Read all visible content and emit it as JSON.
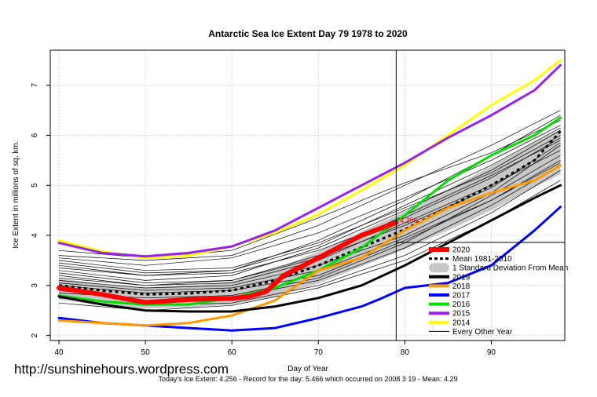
{
  "chart_data": {
    "type": "line",
    "title": "Antarctic Sea Ice Extent Day 79 1978 to 2020",
    "xlabel": "Day of Year",
    "ylabel": "Ice Extent in millions of sq. km.",
    "xlim": [
      39,
      98.5
    ],
    "ylim": [
      1.9,
      7.7
    ],
    "x_ticks": [
      40,
      50,
      60,
      70,
      80,
      90
    ],
    "y_ticks": [
      2,
      3,
      4,
      5,
      6,
      7
    ],
    "grid": true,
    "legend_position": "bottom-right",
    "current_day": 79,
    "current_value": 4.256,
    "current_value_label": "4.256",
    "footer": "Today's Ice Extent: 4.256  - Record for the day: 5.466 which occurred on 2008 3 19  - Mean: 4.29",
    "watermark": "http://sunshinehours.wordpress.com",
    "legend": [
      {
        "label": "2020",
        "color": "#ff0000",
        "style": "thick"
      },
      {
        "label": "Mean 1981-2010",
        "color": "#000000",
        "style": "dashed"
      },
      {
        "label": "1 Standard Deviation From Mean",
        "color": "#c8c8c8",
        "style": "band"
      },
      {
        "label": "2019",
        "color": "#000000",
        "style": "line"
      },
      {
        "label": "2018",
        "color": "#ff9900",
        "style": "line"
      },
      {
        "label": "2017",
        "color": "#0000ff",
        "style": "line"
      },
      {
        "label": "2016",
        "color": "#00dd00",
        "style": "line"
      },
      {
        "label": "2015",
        "color": "#9922ee",
        "style": "line"
      },
      {
        "label": "2014",
        "color": "#ffff00",
        "style": "line"
      },
      {
        "label": "Every Other Year",
        "color": "#000000",
        "style": "thin"
      }
    ],
    "band": {
      "x": [
        40,
        45,
        50,
        55,
        60,
        65,
        70,
        75,
        80,
        85,
        90,
        95,
        98
      ],
      "upper": [
        3.14,
        3.02,
        2.96,
        3.0,
        3.08,
        3.32,
        3.68,
        4.08,
        4.48,
        4.92,
        5.38,
        5.86,
        6.12
      ],
      "lower": [
        2.72,
        2.6,
        2.54,
        2.56,
        2.62,
        2.78,
        3.04,
        3.38,
        3.72,
        4.1,
        4.5,
        4.96,
        5.22
      ]
    },
    "mean": {
      "x": [
        40,
        45,
        50,
        55,
        60,
        65,
        70,
        75,
        80,
        85,
        90,
        95,
        98
      ],
      "y": [
        3.0,
        2.9,
        2.82,
        2.84,
        2.9,
        3.1,
        3.4,
        3.76,
        4.12,
        4.56,
        5.0,
        5.5,
        6.08
      ]
    },
    "series": [
      {
        "name": "2014",
        "color": "#ffff00",
        "width": 3,
        "x": [
          40,
          45,
          50,
          55,
          60,
          65,
          70,
          75,
          80,
          85,
          90,
          95,
          98
        ],
        "y": [
          3.9,
          3.68,
          3.55,
          3.6,
          3.78,
          4.05,
          4.42,
          4.9,
          5.4,
          6.0,
          6.6,
          7.1,
          7.5
        ]
      },
      {
        "name": "2015",
        "color": "#9922ee",
        "width": 3,
        "x": [
          40,
          45,
          50,
          55,
          60,
          65,
          70,
          75,
          80,
          85,
          90,
          95,
          98
        ],
        "y": [
          3.85,
          3.65,
          3.58,
          3.65,
          3.78,
          4.1,
          4.55,
          5.0,
          5.45,
          5.95,
          6.4,
          6.9,
          7.4
        ]
      },
      {
        "name": "2016",
        "color": "#00dd00",
        "width": 3,
        "x": [
          40,
          45,
          50,
          55,
          60,
          65,
          70,
          75,
          80,
          85,
          90,
          95,
          98
        ],
        "y": [
          2.8,
          2.68,
          2.62,
          2.62,
          2.75,
          2.95,
          3.3,
          3.75,
          4.4,
          5.1,
          5.6,
          6.0,
          6.35
        ]
      },
      {
        "name": "2017",
        "color": "#0000ff",
        "width": 3,
        "x": [
          40,
          45,
          50,
          55,
          60,
          65,
          70,
          75,
          77,
          80,
          85,
          90,
          95,
          98
        ],
        "y": [
          2.35,
          2.25,
          2.2,
          2.15,
          2.1,
          2.15,
          2.35,
          2.58,
          2.72,
          2.95,
          3.05,
          3.4,
          4.1,
          4.57
        ]
      },
      {
        "name": "2018",
        "color": "#ff9900",
        "width": 3,
        "x": [
          40,
          45,
          50,
          55,
          60,
          65,
          70,
          75,
          80,
          85,
          90,
          95,
          98
        ],
        "y": [
          2.3,
          2.25,
          2.2,
          2.25,
          2.4,
          2.7,
          3.3,
          3.55,
          4.1,
          4.55,
          4.85,
          5.1,
          5.4
        ]
      },
      {
        "name": "2019",
        "color": "#000000",
        "width": 3,
        "x": [
          40,
          45,
          50,
          55,
          60,
          65,
          70,
          75,
          80,
          85,
          90,
          95,
          98
        ],
        "y": [
          2.78,
          2.62,
          2.5,
          2.48,
          2.48,
          2.58,
          2.75,
          3.0,
          3.4,
          3.85,
          4.3,
          4.75,
          5.0
        ]
      },
      {
        "name": "2020",
        "color": "#ff0000",
        "width": 6,
        "x": [
          40,
          45,
          50,
          55,
          60,
          62,
          64,
          66,
          70,
          75,
          79
        ],
        "y": [
          2.95,
          2.82,
          2.66,
          2.72,
          2.74,
          2.78,
          2.88,
          3.2,
          3.55,
          4.0,
          4.256
        ]
      }
    ],
    "other_years": [
      {
        "x": [
          40,
          50,
          60,
          70,
          80,
          90,
          98
        ],
        "y": [
          3.5,
          3.3,
          3.35,
          3.85,
          4.55,
          5.25,
          6.0
        ]
      },
      {
        "x": [
          40,
          50,
          60,
          70,
          80,
          90,
          98
        ],
        "y": [
          3.2,
          3.0,
          3.05,
          3.5,
          4.25,
          5.0,
          5.7
        ]
      },
      {
        "x": [
          40,
          50,
          60,
          70,
          80,
          90,
          98
        ],
        "y": [
          3.6,
          3.5,
          3.6,
          4.2,
          5.0,
          5.8,
          6.5
        ]
      },
      {
        "x": [
          40,
          50,
          60,
          70,
          80,
          90,
          98
        ],
        "y": [
          3.3,
          3.1,
          3.2,
          3.75,
          4.5,
          5.3,
          6.1
        ]
      },
      {
        "x": [
          40,
          50,
          60,
          70,
          80,
          90,
          98
        ],
        "y": [
          3.0,
          2.85,
          2.9,
          3.2,
          3.9,
          4.7,
          5.5
        ]
      },
      {
        "x": [
          40,
          50,
          60,
          70,
          80,
          90,
          98
        ],
        "y": [
          2.9,
          2.7,
          2.75,
          3.1,
          3.75,
          4.6,
          5.4
        ]
      },
      {
        "x": [
          40,
          50,
          60,
          70,
          80,
          90,
          98
        ],
        "y": [
          3.1,
          2.95,
          3.0,
          3.4,
          4.0,
          4.85,
          5.8
        ]
      },
      {
        "x": [
          40,
          50,
          60,
          70,
          80,
          90,
          98
        ],
        "y": [
          3.7,
          3.55,
          3.7,
          4.35,
          5.05,
          5.65,
          6.3
        ]
      },
      {
        "x": [
          40,
          50,
          60,
          70,
          80,
          90,
          98
        ],
        "y": [
          2.75,
          2.6,
          2.65,
          3.0,
          3.6,
          4.45,
          5.3
        ]
      },
      {
        "x": [
          40,
          50,
          60,
          70,
          80,
          90,
          98
        ],
        "y": [
          3.4,
          3.2,
          3.25,
          3.7,
          4.35,
          5.15,
          5.95
        ]
      },
      {
        "x": [
          40,
          50,
          60,
          70,
          80,
          90,
          98
        ],
        "y": [
          2.65,
          2.5,
          2.6,
          2.95,
          3.5,
          4.3,
          5.1
        ]
      },
      {
        "x": [
          40,
          50,
          60,
          70,
          80,
          90,
          98
        ],
        "y": [
          3.55,
          3.4,
          3.55,
          4.05,
          4.75,
          5.5,
          6.2
        ]
      },
      {
        "x": [
          40,
          50,
          60,
          70,
          80,
          90,
          98
        ],
        "y": [
          3.25,
          3.05,
          3.1,
          3.55,
          4.2,
          4.95,
          5.85
        ]
      },
      {
        "x": [
          40,
          50,
          60,
          70,
          80,
          90,
          98
        ],
        "y": [
          2.85,
          2.75,
          2.8,
          3.15,
          3.85,
          4.8,
          5.6
        ]
      },
      {
        "x": [
          40,
          50,
          60,
          70,
          80,
          90,
          98
        ],
        "y": [
          3.05,
          2.9,
          2.95,
          3.3,
          3.95,
          4.7,
          5.45
        ]
      },
      {
        "x": [
          40,
          50,
          60,
          70,
          80,
          90,
          98
        ],
        "y": [
          3.45,
          3.25,
          3.3,
          3.8,
          4.6,
          5.4,
          6.15
        ]
      },
      {
        "x": [
          40,
          50,
          60,
          70,
          80,
          90,
          98
        ],
        "y": [
          3.15,
          3.0,
          3.1,
          3.6,
          4.4,
          5.2,
          5.9
        ]
      },
      {
        "x": [
          40,
          50,
          60,
          70,
          80,
          90,
          98
        ],
        "y": [
          3.35,
          3.2,
          3.3,
          3.9,
          4.7,
          5.6,
          6.4
        ]
      }
    ]
  }
}
